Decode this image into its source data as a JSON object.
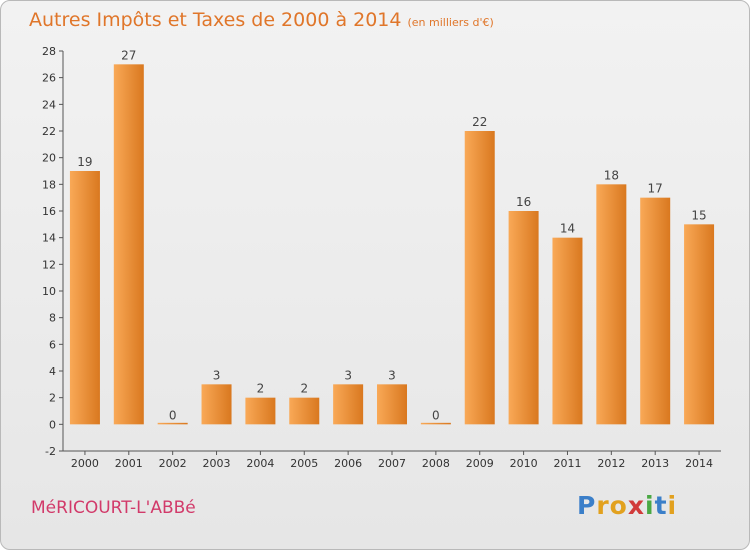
{
  "header": {
    "title": "Autres Impôts et Taxes de 2000 à 2014",
    "unit": "(en milliers d'€)"
  },
  "footer": {
    "commune": "MéRICOURT-L'ABBé",
    "logo_letters": [
      "P",
      "r",
      "o",
      "x",
      "i",
      "t",
      "i"
    ]
  },
  "chart_data": {
    "type": "bar",
    "title": "Autres Impôts et Taxes de 2000 à 2014",
    "subtitle": "(en milliers d'€)",
    "xlabel": "",
    "ylabel": "",
    "categories": [
      "2000",
      "2001",
      "2002",
      "2003",
      "2004",
      "2005",
      "2006",
      "2007",
      "2008",
      "2009",
      "2010",
      "2011",
      "2012",
      "2013",
      "2014"
    ],
    "values": [
      19,
      27,
      0,
      3,
      2,
      2,
      3,
      3,
      0,
      22,
      16,
      14,
      18,
      17,
      15
    ],
    "data_labels": [
      "19",
      "27",
      "0",
      "3",
      "2",
      "2",
      "3",
      "3",
      "0",
      "22",
      "16",
      "14",
      "18",
      "17",
      "15"
    ],
    "ylim": [
      -2,
      28
    ],
    "yticks": [
      -2,
      0,
      2,
      4,
      6,
      8,
      10,
      12,
      14,
      16,
      18,
      20,
      22,
      24,
      26,
      28
    ],
    "grid": false,
    "colors": {
      "bar_light": "#f9a957",
      "bar_dark": "#d9781f",
      "title": "#e0762a",
      "commune": "#d23a6a"
    }
  }
}
